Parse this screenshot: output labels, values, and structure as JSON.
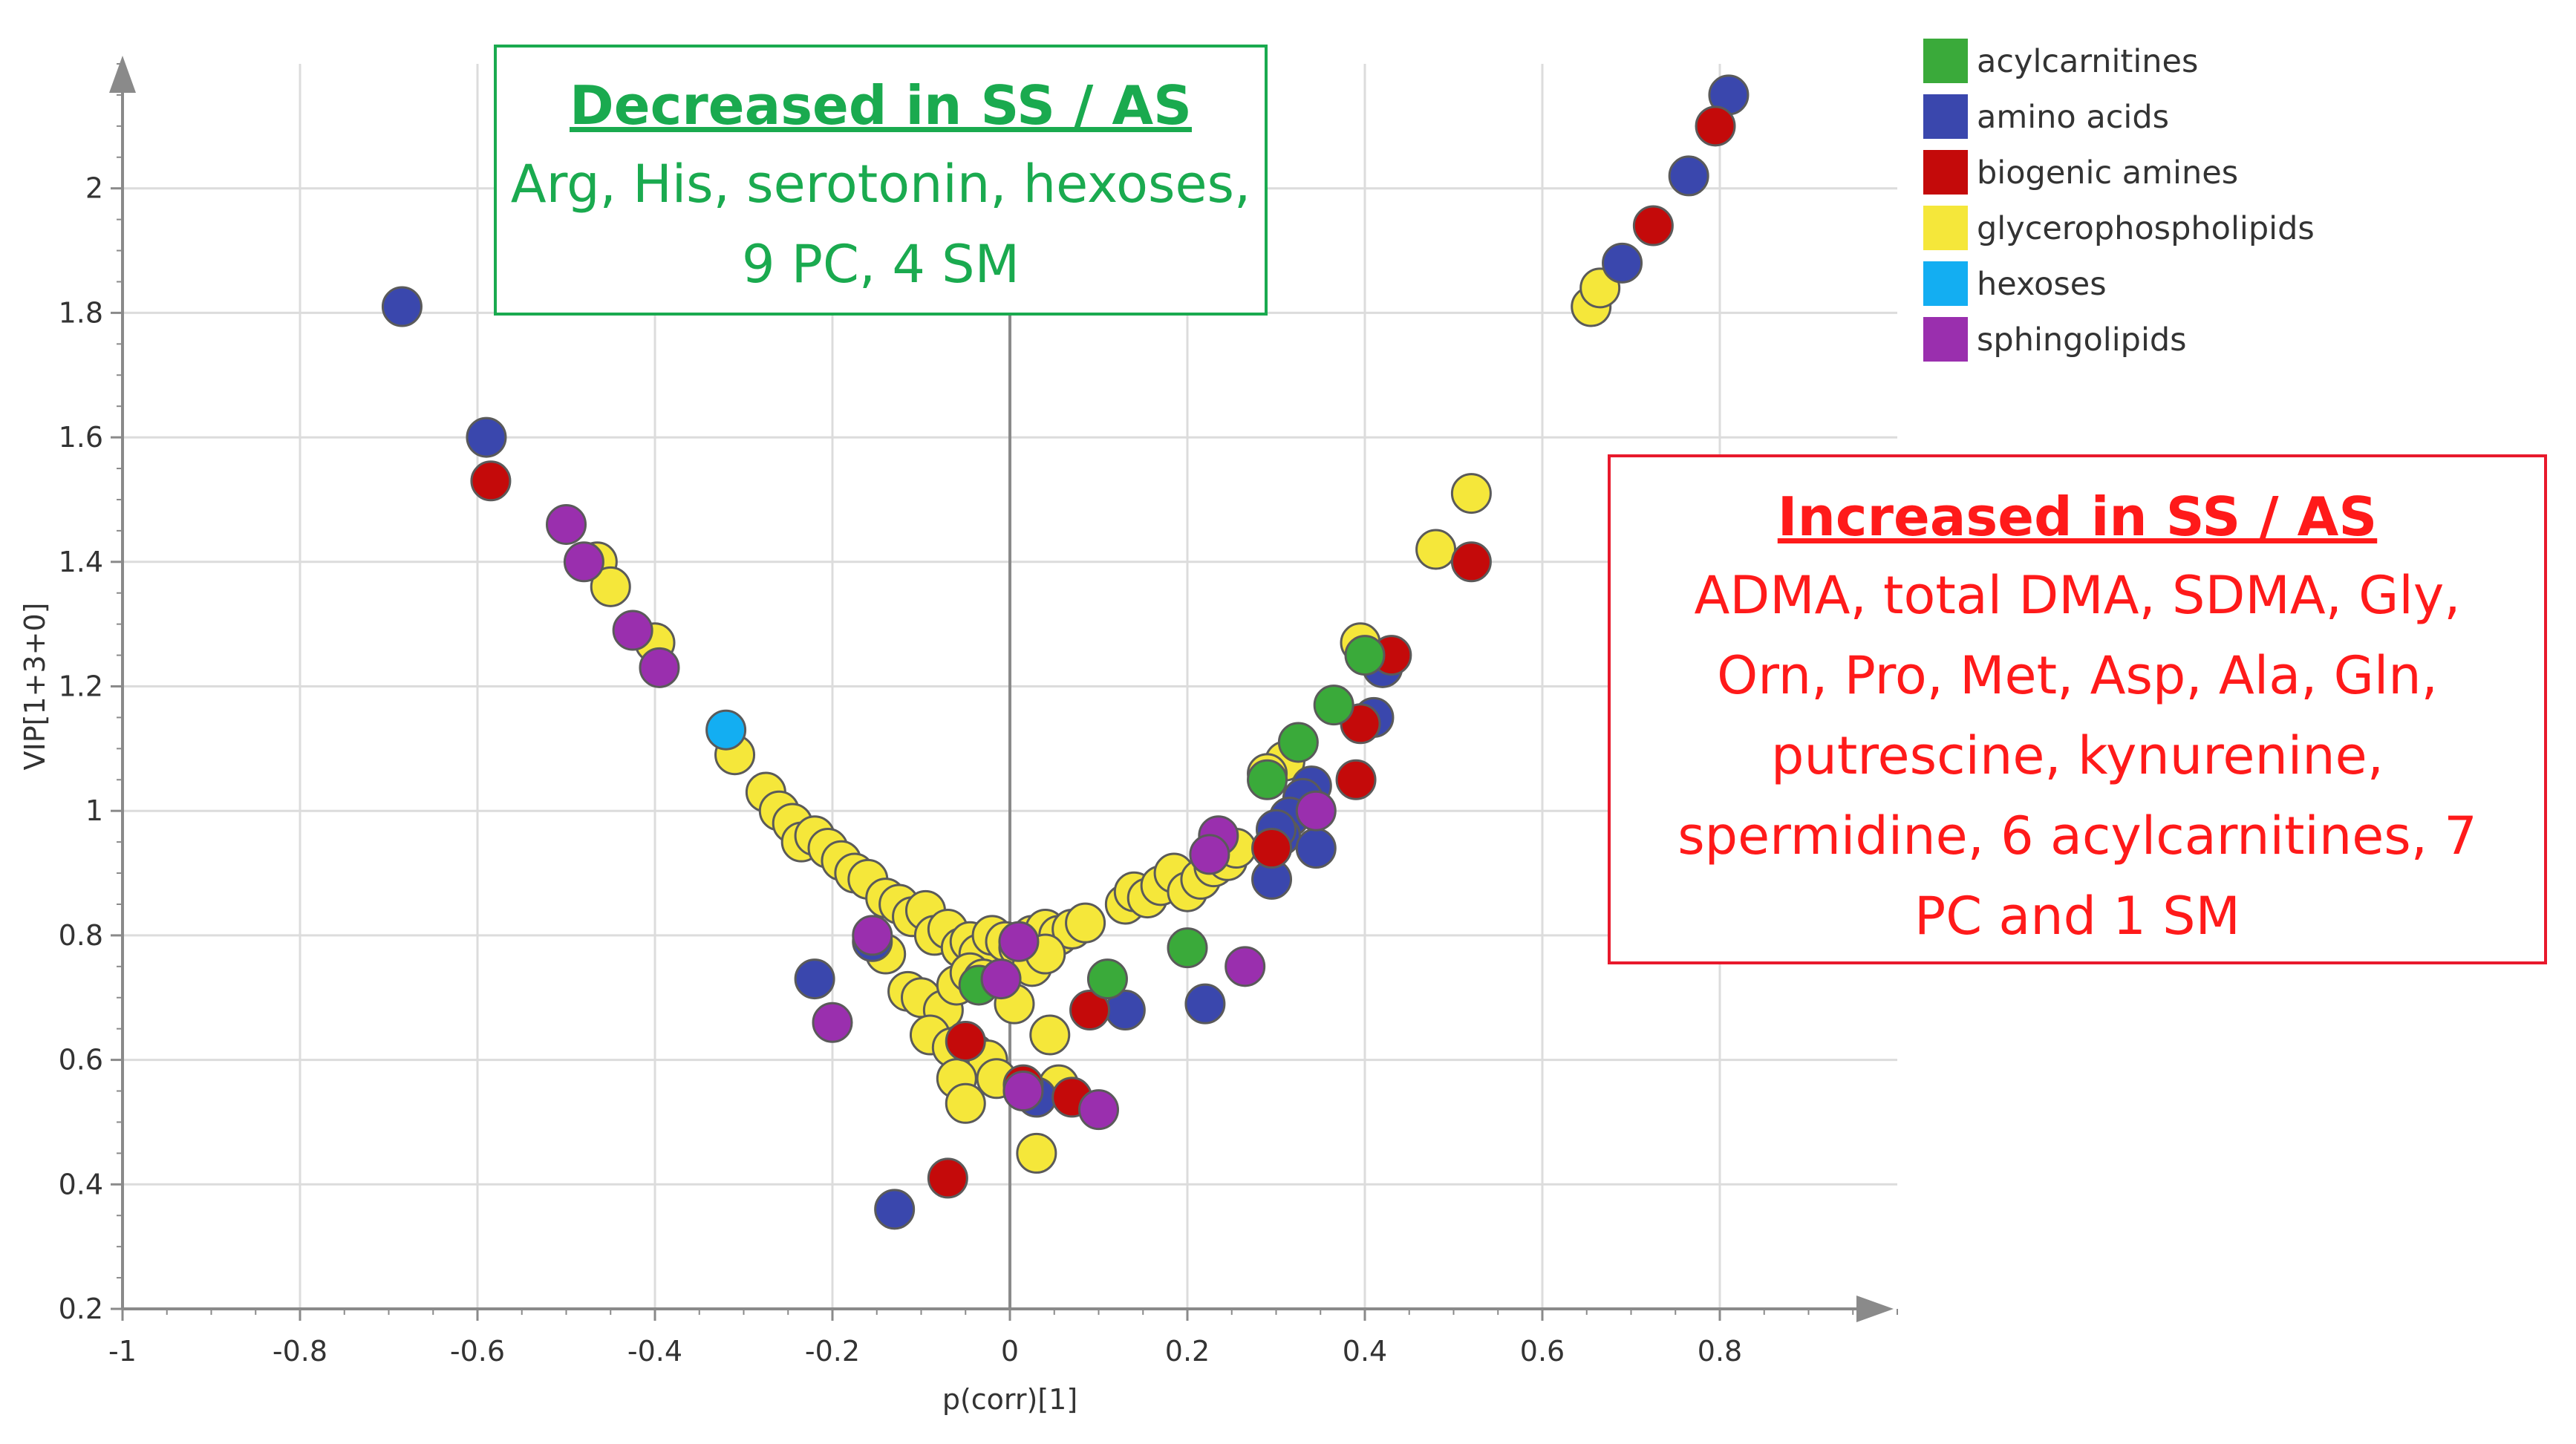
{
  "colors": {
    "acylcarnitines": "#3aaa3a",
    "amino acids": "#3a47ad",
    "biogenic amines": "#c40a0a",
    "glycerophospholipids": "#f5e73a",
    "hexoses": "#13aef2",
    "sphingolipids": "#9a2fae",
    "grid": "#dcdcdc",
    "axis": "#8a8a8a",
    "decreased_box": "#1aaa4f",
    "increased_box": "#ff1a1a"
  },
  "annotations": {
    "decreased": {
      "title": "Decreased in SS / AS",
      "body": "Arg, His, serotonin, hexoses, 9 PC, 4 SM"
    },
    "increased": {
      "title": "Increased in SS / AS",
      "body": "ADMA, total DMA, SDMA, Gly, Orn, Pro, Met, Asp, Ala, Gln, putrescine, kynurenine, spermidine, 6 acylcarnitines, 7 PC and 1 SM"
    }
  },
  "chart_data": {
    "type": "scatter",
    "title": "",
    "xlabel": "p(corr)[1]",
    "ylabel": "VIP[1+3+0]",
    "xlim": [
      -1,
      1
    ],
    "ylim": [
      0.2,
      2.2
    ],
    "x_ticks": [
      -1,
      -0.8,
      -0.6,
      -0.4,
      -0.2,
      0,
      0.2,
      0.4,
      0.6,
      0.8
    ],
    "x_tick_labels": [
      "-1",
      "-0.8",
      "-0.6",
      "-0.4",
      "-0.2",
      "0",
      "0.2",
      "0.4",
      "0.6",
      "0.8"
    ],
    "y_ticks": [
      0.2,
      0.4,
      0.6,
      0.8,
      1,
      1.2,
      1.4,
      1.6,
      1.8,
      2
    ],
    "y_tick_labels": [
      "0.2",
      "0.4",
      "0.6",
      "0.8",
      "1",
      "1.2",
      "1.4",
      "1.6",
      "1.8",
      "2"
    ],
    "grid": true,
    "legend_position": "top-right",
    "legend": [
      "acylcarnitines",
      "amino acids",
      "biogenic amines",
      "glycerophospholipids",
      "hexoses",
      "sphingolipids"
    ],
    "series": [
      {
        "name": "glycerophospholipids",
        "points": [
          [
            0.655,
            1.81
          ],
          [
            0.665,
            1.84
          ],
          [
            0.52,
            1.51
          ],
          [
            0.48,
            1.42
          ],
          [
            0.395,
            1.27
          ],
          [
            0.31,
            1.08
          ],
          [
            0.29,
            1.06
          ],
          [
            -0.465,
            1.4
          ],
          [
            -0.45,
            1.36
          ],
          [
            -0.4,
            1.27
          ],
          [
            -0.31,
            1.09
          ],
          [
            -0.275,
            1.03
          ],
          [
            -0.26,
            1.0
          ],
          [
            -0.245,
            0.98
          ],
          [
            -0.235,
            0.95
          ],
          [
            -0.22,
            0.96
          ],
          [
            -0.205,
            0.94
          ],
          [
            -0.19,
            0.92
          ],
          [
            -0.175,
            0.9
          ],
          [
            -0.16,
            0.89
          ],
          [
            -0.14,
            0.86
          ],
          [
            -0.125,
            0.85
          ],
          [
            -0.11,
            0.83
          ],
          [
            -0.095,
            0.84
          ],
          [
            -0.085,
            0.8
          ],
          [
            -0.07,
            0.81
          ],
          [
            -0.055,
            0.78
          ],
          [
            -0.045,
            0.79
          ],
          [
            -0.035,
            0.77
          ],
          [
            -0.02,
            0.8
          ],
          [
            -0.005,
            0.79
          ],
          [
            0.01,
            0.78
          ],
          [
            0.025,
            0.8
          ],
          [
            0.04,
            0.81
          ],
          [
            0.055,
            0.8
          ],
          [
            0.07,
            0.81
          ],
          [
            0.085,
            0.82
          ],
          [
            0.13,
            0.85
          ],
          [
            0.14,
            0.87
          ],
          [
            0.155,
            0.86
          ],
          [
            0.17,
            0.88
          ],
          [
            0.185,
            0.9
          ],
          [
            0.2,
            0.87
          ],
          [
            0.215,
            0.89
          ],
          [
            0.23,
            0.91
          ],
          [
            0.245,
            0.92
          ],
          [
            0.255,
            0.94
          ],
          [
            -0.14,
            0.77
          ],
          [
            -0.115,
            0.71
          ],
          [
            -0.1,
            0.7
          ],
          [
            -0.075,
            0.68
          ],
          [
            -0.06,
            0.72
          ],
          [
            -0.045,
            0.74
          ],
          [
            -0.03,
            0.73
          ],
          [
            0.005,
            0.69
          ],
          [
            0.025,
            0.75
          ],
          [
            0.04,
            0.77
          ],
          [
            -0.09,
            0.64
          ],
          [
            -0.065,
            0.62
          ],
          [
            -0.04,
            0.61
          ],
          [
            -0.025,
            0.6
          ],
          [
            -0.015,
            0.57
          ],
          [
            -0.06,
            0.57
          ],
          [
            -0.05,
            0.53
          ],
          [
            0.045,
            0.64
          ],
          [
            0.055,
            0.56
          ],
          [
            0.03,
            0.45
          ]
        ]
      },
      {
        "name": "amino acids",
        "points": [
          [
            0.81,
            2.15
          ],
          [
            0.765,
            2.02
          ],
          [
            0.69,
            1.88
          ],
          [
            -0.685,
            1.81
          ],
          [
            -0.59,
            1.6
          ],
          [
            0.42,
            1.23
          ],
          [
            0.41,
            1.15
          ],
          [
            0.34,
            1.04
          ],
          [
            0.33,
            1.02
          ],
          [
            0.315,
            0.99
          ],
          [
            0.305,
            0.96
          ],
          [
            0.3,
            0.97
          ],
          [
            0.345,
            0.94
          ],
          [
            0.295,
            0.89
          ],
          [
            0.22,
            0.69
          ],
          [
            0.13,
            0.68
          ],
          [
            -0.22,
            0.73
          ],
          [
            -0.155,
            0.79
          ],
          [
            -0.13,
            0.36
          ],
          [
            0.03,
            0.54
          ]
        ]
      },
      {
        "name": "biogenic amines",
        "points": [
          [
            0.795,
            2.1
          ],
          [
            0.725,
            1.94
          ],
          [
            0.52,
            1.4
          ],
          [
            0.43,
            1.25
          ],
          [
            0.395,
            1.14
          ],
          [
            0.39,
            1.05
          ],
          [
            0.295,
            0.94
          ],
          [
            0.09,
            0.68
          ],
          [
            0.07,
            0.54
          ],
          [
            -0.585,
            1.53
          ],
          [
            -0.07,
            0.41
          ],
          [
            -0.05,
            0.63
          ],
          [
            0.015,
            0.56
          ]
        ]
      },
      {
        "name": "acylcarnitines",
        "points": [
          [
            0.4,
            1.25
          ],
          [
            0.365,
            1.17
          ],
          [
            0.325,
            1.11
          ],
          [
            0.29,
            1.05
          ],
          [
            0.2,
            0.78
          ],
          [
            0.11,
            0.73
          ],
          [
            -0.035,
            0.72
          ]
        ]
      },
      {
        "name": "hexoses",
        "points": [
          [
            -0.32,
            1.13
          ]
        ]
      },
      {
        "name": "sphingolipids",
        "points": [
          [
            -0.5,
            1.46
          ],
          [
            -0.48,
            1.4
          ],
          [
            -0.425,
            1.29
          ],
          [
            -0.395,
            1.23
          ],
          [
            0.345,
            1.0
          ],
          [
            0.235,
            0.96
          ],
          [
            0.225,
            0.93
          ],
          [
            0.265,
            0.75
          ],
          [
            -0.155,
            0.8
          ],
          [
            -0.2,
            0.66
          ],
          [
            0.01,
            0.79
          ],
          [
            -0.01,
            0.73
          ],
          [
            0.015,
            0.55
          ],
          [
            0.1,
            0.52
          ]
        ]
      }
    ]
  }
}
